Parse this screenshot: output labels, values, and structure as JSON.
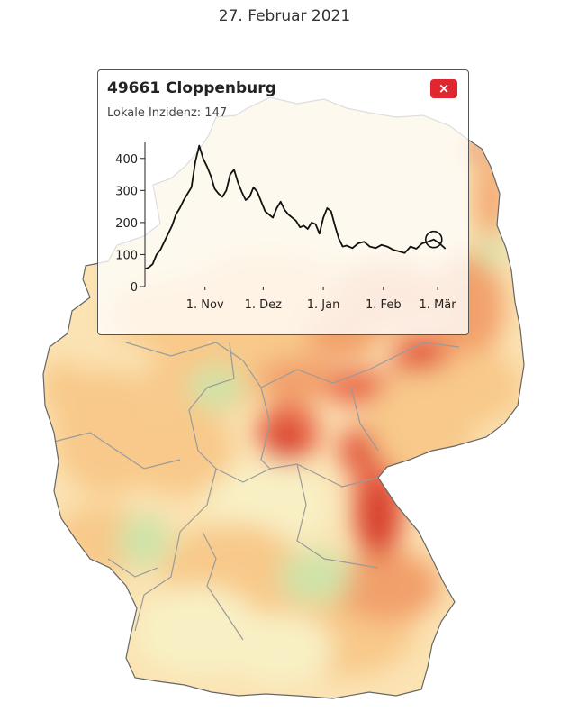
{
  "date": "27. Februar 2021",
  "map": {
    "colors": {
      "background": "#fbe3b3",
      "low": "#cfe3a8",
      "lowmid": "#f8f0c4",
      "mid": "#f8c98a",
      "high": "#f2a06a",
      "veryhigh": "#ea6b4b",
      "extreme": "#d53a2c",
      "border": "#9a9a9a"
    }
  },
  "popup": {
    "title": "49661 Cloppenburg",
    "subtitle": "Lokale Inzidenz: 147",
    "close_label": "×"
  },
  "chart_data": {
    "type": "line",
    "title": "",
    "xlabel": "",
    "ylabel": "",
    "ylim": [
      0,
      450
    ],
    "y_ticks": [
      0,
      100,
      200,
      300,
      400
    ],
    "x_tick_labels": [
      "1. Nov",
      "1. Dez",
      "1. Jan",
      "1. Feb",
      "1. Mär"
    ],
    "x_tick_dates": [
      "2020-11-01",
      "2020-12-01",
      "2021-01-01",
      "2021-02-01",
      "2021-03-01"
    ],
    "x_range": [
      "2020-10-01",
      "2021-03-07"
    ],
    "series": [
      {
        "x": [
          "2020-10-01",
          "2020-10-03",
          "2020-10-05",
          "2020-10-07",
          "2020-10-09",
          "2020-10-11",
          "2020-10-13",
          "2020-10-15",
          "2020-10-17",
          "2020-10-19",
          "2020-10-21",
          "2020-10-23",
          "2020-10-25",
          "2020-10-27",
          "2020-10-29",
          "2020-10-31",
          "2020-11-02",
          "2020-11-04",
          "2020-11-06",
          "2020-11-08",
          "2020-11-10",
          "2020-11-12",
          "2020-11-14",
          "2020-11-16",
          "2020-11-18",
          "2020-11-20",
          "2020-11-22",
          "2020-11-24",
          "2020-11-26",
          "2020-11-28",
          "2020-11-30",
          "2020-12-02",
          "2020-12-04",
          "2020-12-06",
          "2020-12-08",
          "2020-12-10",
          "2020-12-12",
          "2020-12-14",
          "2020-12-16",
          "2020-12-18",
          "2020-12-20",
          "2020-12-22",
          "2020-12-24",
          "2020-12-26",
          "2020-12-28",
          "2020-12-30",
          "2021-01-01",
          "2021-01-03",
          "2021-01-05",
          "2021-01-07",
          "2021-01-09",
          "2021-01-11",
          "2021-01-13",
          "2021-01-16",
          "2021-01-19",
          "2021-01-22",
          "2021-01-25",
          "2021-01-28",
          "2021-01-31",
          "2021-02-03",
          "2021-02-06",
          "2021-02-09",
          "2021-02-12",
          "2021-02-15",
          "2021-02-18",
          "2021-02-21",
          "2021-02-24",
          "2021-02-27",
          "2021-03-02",
          "2021-03-05"
        ],
        "y": [
          55,
          60,
          70,
          100,
          115,
          140,
          165,
          190,
          225,
          245,
          270,
          290,
          310,
          390,
          440,
          400,
          375,
          345,
          305,
          290,
          280,
          300,
          350,
          365,
          325,
          295,
          270,
          280,
          310,
          295,
          265,
          235,
          225,
          215,
          245,
          265,
          240,
          225,
          215,
          205,
          185,
          190,
          180,
          200,
          195,
          165,
          215,
          245,
          235,
          190,
          150,
          125,
          128,
          120,
          135,
          140,
          125,
          120,
          130,
          125,
          115,
          110,
          105,
          125,
          118,
          135,
          140,
          147,
          135,
          118
        ]
      }
    ],
    "highlight": {
      "x": "2021-02-27",
      "y": 147
    },
    "grid": false
  }
}
